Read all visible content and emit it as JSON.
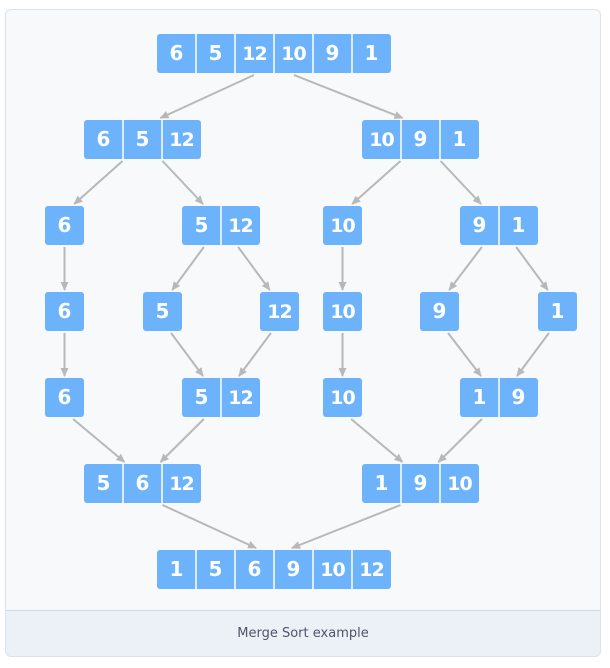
{
  "caption": "Merge Sort example",
  "colors": {
    "cell_fill": "#6db3fb",
    "cell_divider": "#ffffff",
    "arrow": "#b8b8b8",
    "caption_bar": "#ecf0f7"
  },
  "nodes": [
    {
      "id": "n1",
      "values": [
        6,
        5,
        12,
        10,
        9,
        1
      ]
    },
    {
      "id": "n2",
      "values": [
        6,
        5,
        12
      ]
    },
    {
      "id": "n3",
      "values": [
        10,
        9,
        1
      ]
    },
    {
      "id": "n4",
      "values": [
        6
      ]
    },
    {
      "id": "n5",
      "values": [
        5,
        12
      ]
    },
    {
      "id": "n6",
      "values": [
        10
      ]
    },
    {
      "id": "n7",
      "values": [
        9,
        1
      ]
    },
    {
      "id": "n8",
      "values": [
        6
      ]
    },
    {
      "id": "n9",
      "values": [
        5
      ]
    },
    {
      "id": "n10",
      "values": [
        12
      ]
    },
    {
      "id": "n11",
      "values": [
        10
      ]
    },
    {
      "id": "n12",
      "values": [
        9
      ]
    },
    {
      "id": "n13",
      "values": [
        1
      ]
    },
    {
      "id": "n14",
      "values": [
        6
      ]
    },
    {
      "id": "n15",
      "values": [
        5,
        12
      ]
    },
    {
      "id": "n16",
      "values": [
        10
      ]
    },
    {
      "id": "n17",
      "values": [
        1,
        9
      ]
    },
    {
      "id": "n18",
      "values": [
        5,
        6,
        12
      ]
    },
    {
      "id": "n19",
      "values": [
        1,
        9,
        10
      ]
    },
    {
      "id": "n20",
      "values": [
        1,
        5,
        6,
        9,
        10,
        12
      ]
    }
  ],
  "edges": [
    [
      "n1",
      "n2"
    ],
    [
      "n1",
      "n3"
    ],
    [
      "n2",
      "n4"
    ],
    [
      "n2",
      "n5"
    ],
    [
      "n3",
      "n6"
    ],
    [
      "n3",
      "n7"
    ],
    [
      "n4",
      "n8"
    ],
    [
      "n5",
      "n9"
    ],
    [
      "n5",
      "n10"
    ],
    [
      "n6",
      "n11"
    ],
    [
      "n7",
      "n12"
    ],
    [
      "n7",
      "n13"
    ],
    [
      "n8",
      "n14"
    ],
    [
      "n9",
      "n15"
    ],
    [
      "n10",
      "n15"
    ],
    [
      "n11",
      "n16"
    ],
    [
      "n12",
      "n17"
    ],
    [
      "n13",
      "n17"
    ],
    [
      "n14",
      "n18"
    ],
    [
      "n15",
      "n18"
    ],
    [
      "n16",
      "n19"
    ],
    [
      "n17",
      "n19"
    ],
    [
      "n18",
      "n20"
    ],
    [
      "n19",
      "n20"
    ]
  ]
}
